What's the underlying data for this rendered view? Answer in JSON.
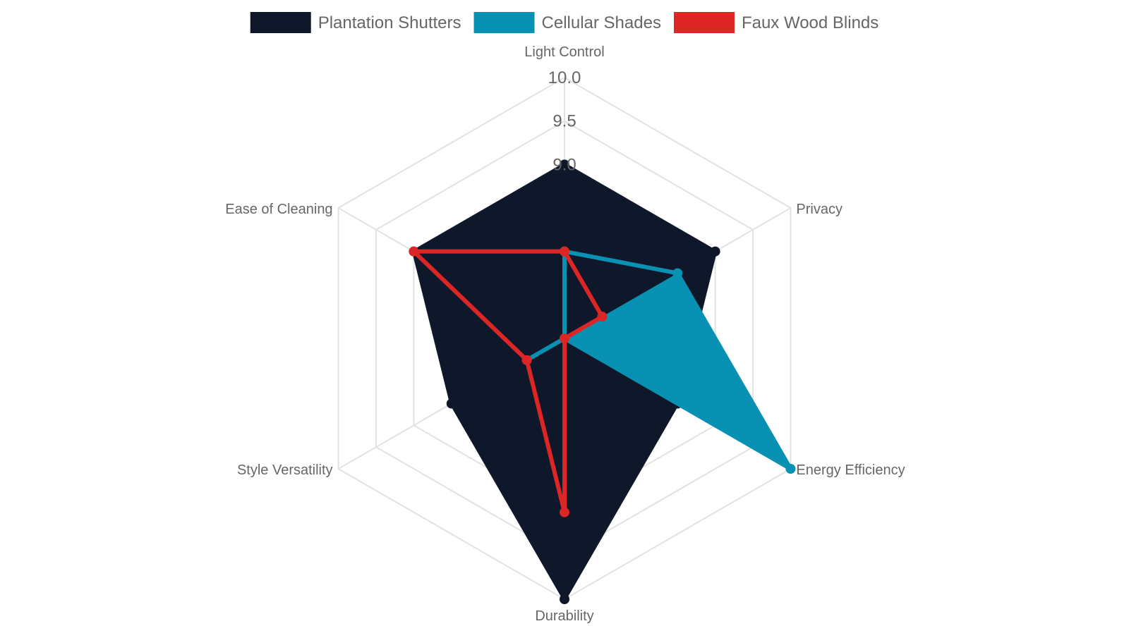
{
  "chart_data": {
    "type": "radar",
    "axes": [
      "Light Control",
      "Privacy",
      "Energy Efficiency",
      "Durability",
      "Style Versatility",
      "Ease of Cleaning"
    ],
    "r_min": 7.0,
    "r_max": 10.0,
    "ticks": [
      "9.0",
      "9.5",
      "10.0"
    ],
    "tick_values": [
      9.0,
      9.5,
      10.0
    ],
    "grid": true,
    "legend_position": "top",
    "series": [
      {
        "name": "Plantation Shutters",
        "values": [
          9.0,
          9.0,
          8.5,
          10.0,
          8.5,
          9.0
        ],
        "color": "#0f172a",
        "filled": true
      },
      {
        "name": "Cellular Shades",
        "values": [
          8.0,
          8.5,
          10.0,
          7.0,
          7.5,
          7.0
        ],
        "color": "#0891b2",
        "filled": false,
        "fill_last_segment": true
      },
      {
        "name": "Faux Wood Blinds",
        "values": [
          8.0,
          7.5,
          7.0,
          9.0,
          7.5,
          9.0
        ],
        "color": "#dc2626",
        "filled": false
      }
    ]
  }
}
